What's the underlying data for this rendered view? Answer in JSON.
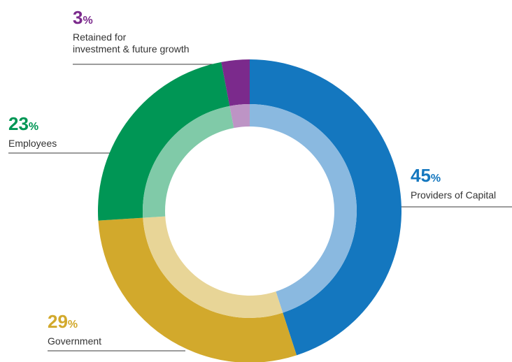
{
  "chart_data": {
    "type": "pie",
    "style": "donut",
    "title": "",
    "percent_symbol": "%",
    "slices": [
      {
        "label": "Providers of Capital",
        "value": 45,
        "color": "#1477bf",
        "inner_color": "#8ab9e0"
      },
      {
        "label": "Government",
        "value": 29,
        "color": "#d2a92c",
        "inner_color": "#e8d597"
      },
      {
        "label": "Employees",
        "value": 23,
        "color": "#009655",
        "inner_color": "#80caa8"
      },
      {
        "label": "Retained for investment & future growth",
        "value": 3,
        "color": "#7b2a8c",
        "inner_color": "#bd94c5"
      }
    ],
    "legend": "callout labels with leader lines"
  },
  "labels": {
    "retained_line1": "Retained for",
    "retained_line2": "investment & future growth"
  }
}
